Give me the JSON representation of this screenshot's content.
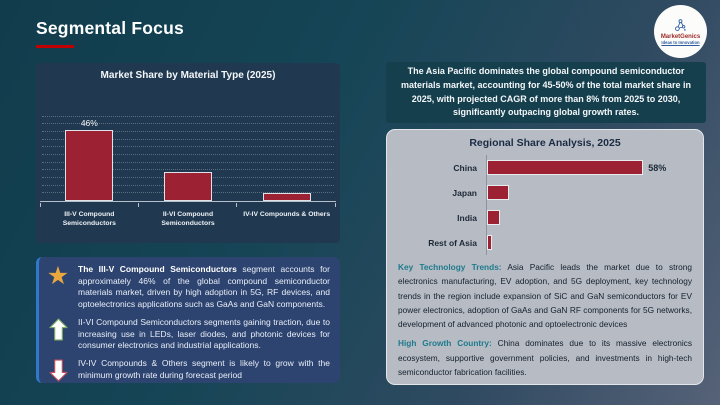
{
  "slide": {
    "title": "Segmental Focus",
    "logo": {
      "name": "MarketGenics",
      "tagline": "Ideas to Innovation"
    }
  },
  "callout": {
    "text": "The Asia Pacific dominates the global compound semiconductor materials market, accounting for 45-50% of the total market share in 2025, with projected CAGR of more than 8% from 2025 to 2030, significantly outpacing global growth rates."
  },
  "insights": {
    "items": [
      {
        "icon": "star",
        "lead": "The III-V Compound Semiconductors",
        "text": " segment accounts for approximately 46% of the global compound semiconductor materials market, driven by high adoption in 5G, RF devices, and optoelectronics applications such as GaAs and GaN components."
      },
      {
        "icon": "up-arrow",
        "lead": "",
        "text": "II-VI Compound Semiconductors segments gaining traction, due to increasing use in LEDs, laser diodes, and photonic devices for consumer electronics and industrial applications."
      },
      {
        "icon": "down-arrow",
        "lead": "",
        "text": "IV-IV Compounds & Others segment is likely to grow with the minimum growth rate during forecast period"
      }
    ]
  },
  "regional_notes": {
    "trends_label": "Key Technology Trends:",
    "trends_text": " Asia Pacific leads the market due to strong electronics manufacturing, EV adoption, and 5G deployment, key technology trends in the region include expansion of SiC and GaN semiconductors for EV power electronics, adoption of GaAs and GaN RF components for 5G networks, development of advanced photonic and optoelectronic devices",
    "growth_label": "High Growth Country:",
    "growth_text": " China dominates due to its massive electronics ecosystem, supportive government policies, and investments in high-tech semiconductor fabrication facilities."
  },
  "chart_data": [
    {
      "type": "bar",
      "orientation": "vertical",
      "title": "Market Share by Material Type (2025)",
      "categories": [
        "III-V Compound Semiconductors",
        "II-VI Compound Semiconductors",
        "IV-IV Compounds & Others"
      ],
      "values": [
        46,
        19,
        5
      ],
      "data_labels": [
        "46%",
        "",
        ""
      ],
      "ylabel": "",
      "xlabel": "",
      "ylim": [
        0,
        60
      ],
      "grid_step": 5,
      "grid": "dotted-horizontal",
      "legend": "none",
      "bar_color": "#9B2133"
    },
    {
      "type": "bar",
      "orientation": "horizontal",
      "title": "Regional Share Analysis, 2025",
      "categories": [
        "China",
        "Japan",
        "India",
        "Rest of Asia"
      ],
      "values": [
        58,
        8,
        5,
        2
      ],
      "data_labels": [
        "58%",
        "",
        "",
        ""
      ],
      "ylabel": "",
      "xlabel": "",
      "xlim": [
        0,
        75
      ],
      "grid": "off",
      "legend": "none",
      "bar_color": "#9B2133"
    }
  ],
  "colors": {
    "accent_red": "#C00000",
    "bar_red": "#9B2133",
    "panel_bg": "#B7BCC4",
    "insights_bg": "#2D4470",
    "accent_blue": "#2E79C9",
    "teal_lead": "#1E7A8C",
    "star_gold": "#E9A73E"
  }
}
